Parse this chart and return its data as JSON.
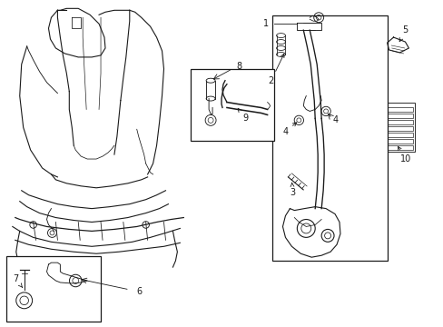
{
  "bg_color": "#ffffff",
  "line_color": "#1a1a1a",
  "fig_width": 4.89,
  "fig_height": 3.6,
  "dpi": 100,
  "seat_outline": {
    "left_x": [
      0.3,
      0.22,
      0.18,
      0.2,
      0.28,
      0.4,
      0.55,
      0.65,
      0.7,
      0.72,
      0.75,
      0.78,
      0.85,
      0.95,
      1.05,
      1.15,
      1.25,
      1.35,
      1.55,
      1.72,
      1.8,
      1.82,
      1.8,
      1.72,
      1.6,
      1.5,
      1.45,
      1.42
    ],
    "left_y": [
      3.35,
      3.2,
      2.95,
      2.6,
      2.3,
      2.0,
      1.78,
      1.65,
      1.62,
      1.6,
      1.58,
      1.58,
      1.6,
      1.62,
      1.63,
      1.63,
      1.62,
      1.62,
      1.65,
      1.72,
      1.85,
      2.2,
      2.65,
      3.0,
      3.22,
      3.38,
      3.48,
      3.52
    ]
  },
  "label_fontsize": 7,
  "arrow_lw": 0.6
}
